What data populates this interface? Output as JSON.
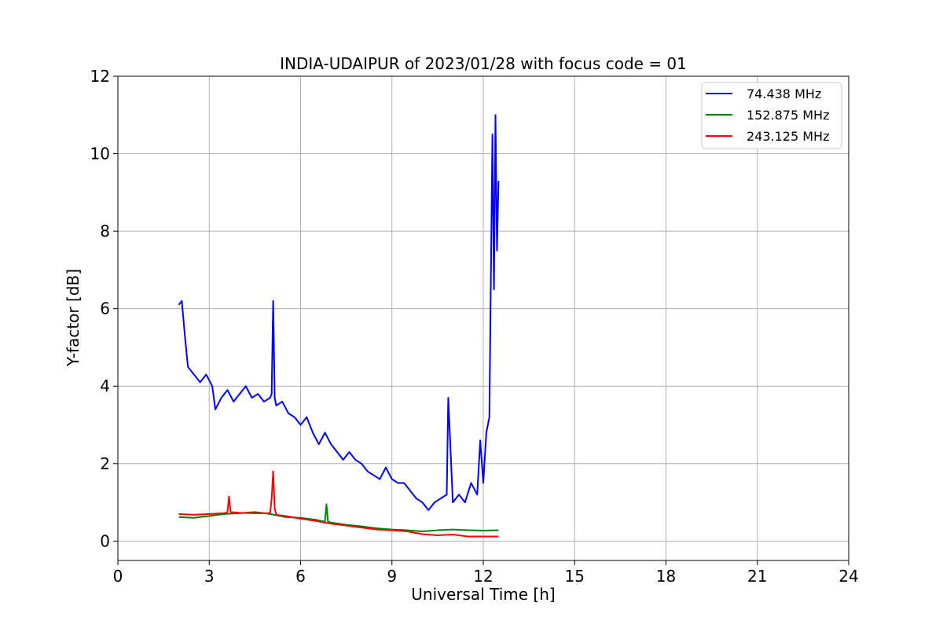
{
  "chart_data": {
    "type": "line",
    "title": "INDIA-UDAIPUR of 2023/01/28 with focus code = 01",
    "xlabel": "Universal Time [h]",
    "ylabel": "Y-factor [dB]",
    "xlim": [
      0,
      24
    ],
    "ylim": [
      -0.5,
      12
    ],
    "xticks": [
      0,
      3,
      6,
      9,
      12,
      15,
      18,
      21,
      24
    ],
    "yticks": [
      0,
      2,
      4,
      6,
      8,
      10,
      12
    ],
    "grid": true,
    "legend_position": "top-right",
    "series": [
      {
        "name": " 74.438 MHz",
        "color": "#0000ff",
        "x": [
          2.0,
          2.1,
          2.2,
          2.3,
          2.5,
          2.7,
          2.9,
          3.1,
          3.2,
          3.4,
          3.6,
          3.8,
          4.0,
          4.2,
          4.4,
          4.6,
          4.8,
          5.0,
          5.05,
          5.1,
          5.15,
          5.2,
          5.4,
          5.6,
          5.8,
          6.0,
          6.2,
          6.4,
          6.6,
          6.8,
          7.0,
          7.2,
          7.4,
          7.6,
          7.8,
          8.0,
          8.2,
          8.4,
          8.6,
          8.8,
          9.0,
          9.2,
          9.4,
          9.6,
          9.8,
          10.0,
          10.2,
          10.4,
          10.6,
          10.8,
          10.85,
          11.0,
          11.2,
          11.4,
          11.6,
          11.8,
          11.9,
          12.0,
          12.1,
          12.2,
          12.3,
          12.35,
          12.4,
          12.45,
          12.5
        ],
        "y": [
          6.1,
          6.2,
          5.3,
          4.5,
          4.3,
          4.1,
          4.3,
          4.0,
          3.4,
          3.7,
          3.9,
          3.6,
          3.8,
          4.0,
          3.7,
          3.8,
          3.6,
          3.7,
          3.8,
          6.2,
          3.7,
          3.5,
          3.6,
          3.3,
          3.2,
          3.0,
          3.2,
          2.8,
          2.5,
          2.8,
          2.5,
          2.3,
          2.1,
          2.3,
          2.1,
          2.0,
          1.8,
          1.7,
          1.6,
          1.9,
          1.6,
          1.5,
          1.5,
          1.3,
          1.1,
          1.0,
          0.8,
          1.0,
          1.1,
          1.2,
          3.7,
          1.0,
          1.2,
          1.0,
          1.5,
          1.2,
          2.6,
          1.5,
          2.8,
          3.2,
          10.5,
          6.5,
          11.0,
          7.5,
          9.3
        ]
      },
      {
        "name": "152.875 MHz",
        "color": "#008000",
        "x": [
          2.0,
          2.5,
          3.0,
          3.5,
          4.0,
          4.5,
          5.0,
          5.5,
          6.0,
          6.5,
          6.8,
          6.85,
          6.9,
          7.0,
          7.5,
          8.0,
          8.5,
          9.0,
          9.5,
          10.0,
          10.5,
          11.0,
          11.5,
          12.0,
          12.5
        ],
        "y": [
          0.62,
          0.6,
          0.65,
          0.7,
          0.72,
          0.75,
          0.7,
          0.62,
          0.6,
          0.55,
          0.5,
          0.95,
          0.5,
          0.48,
          0.42,
          0.38,
          0.33,
          0.3,
          0.28,
          0.25,
          0.28,
          0.3,
          0.28,
          0.27,
          0.28
        ]
      },
      {
        "name": "243.125 MHz",
        "color": "#ff0000",
        "x": [
          2.0,
          2.5,
          3.0,
          3.5,
          3.6,
          3.65,
          3.7,
          4.0,
          4.5,
          5.0,
          5.05,
          5.1,
          5.15,
          5.2,
          5.5,
          6.0,
          6.5,
          7.0,
          7.5,
          8.0,
          8.5,
          9.0,
          9.5,
          10.0,
          10.5,
          11.0,
          11.5,
          12.0,
          12.5
        ],
        "y": [
          0.7,
          0.68,
          0.7,
          0.72,
          0.75,
          1.15,
          0.75,
          0.73,
          0.72,
          0.72,
          1.1,
          1.8,
          0.85,
          0.68,
          0.65,
          0.58,
          0.52,
          0.45,
          0.4,
          0.35,
          0.3,
          0.28,
          0.25,
          0.18,
          0.15,
          0.17,
          0.12,
          0.12,
          0.12
        ]
      }
    ]
  }
}
